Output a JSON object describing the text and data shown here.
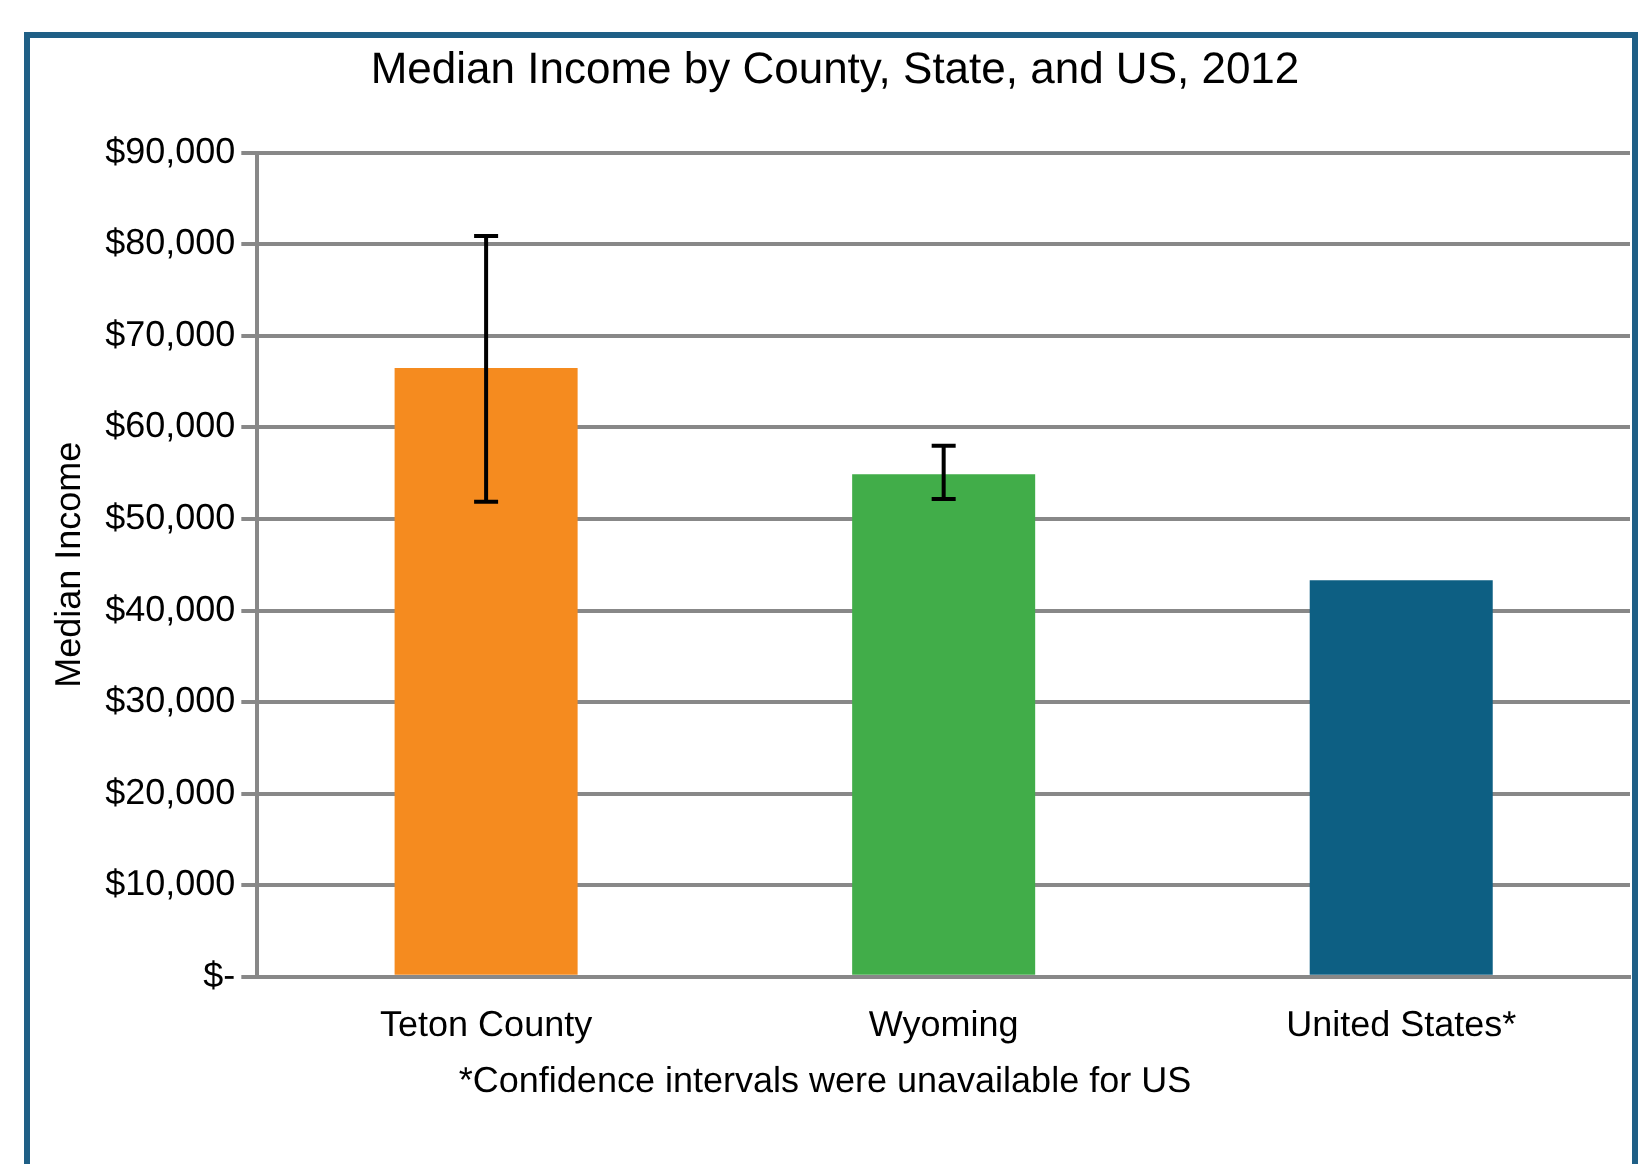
{
  "chart_data": {
    "type": "bar",
    "title": "Median Income by County, State, and US, 2012",
    "ylabel": "Median Income",
    "categories": [
      "Teton County",
      "Wyoming",
      "United States*"
    ],
    "values": [
      66500,
      54900,
      43300
    ],
    "colors": [
      "#f58b1f",
      "#41ad49",
      "#0d5f83"
    ],
    "errors": [
      [
        51900,
        80900
      ],
      [
        52200,
        58000
      ],
      null
    ],
    "ylim": [
      0,
      90000
    ],
    "yticks": [
      {
        "value": 0,
        "label": "$-"
      },
      {
        "value": 10000,
        "label": "$10,000"
      },
      {
        "value": 20000,
        "label": "$20,000"
      },
      {
        "value": 30000,
        "label": "$30,000"
      },
      {
        "value": 40000,
        "label": "$40,000"
      },
      {
        "value": 50000,
        "label": "$50,000"
      },
      {
        "value": 60000,
        "label": "$60,000"
      },
      {
        "value": 70000,
        "label": "$70,000"
      },
      {
        "value": 80000,
        "label": "$80,000"
      },
      {
        "value": 90000,
        "label": "$90,000"
      }
    ],
    "grid": "y",
    "legend": false,
    "annotations": [
      "*Confidence intervals were unavailable for US"
    ]
  }
}
